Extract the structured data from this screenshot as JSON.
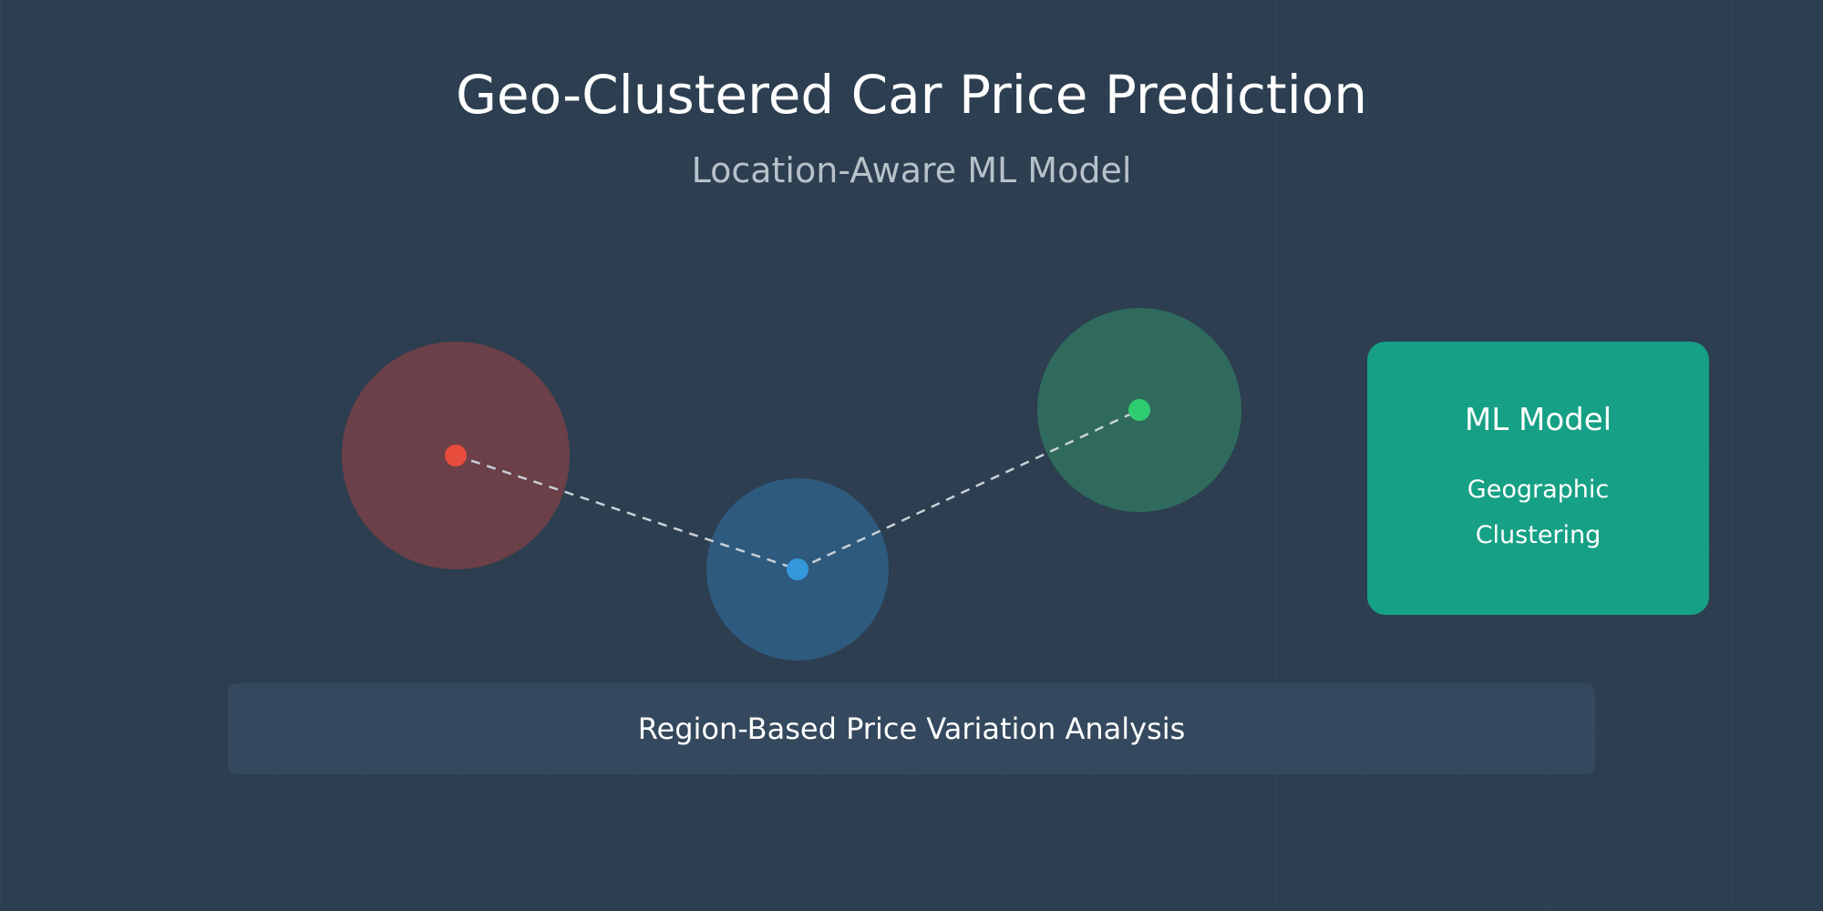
{
  "header": {
    "title": "Geo-Clustered Car Price Prediction",
    "subtitle": "Location-Aware ML Model"
  },
  "clusters": [
    {
      "name": "red-cluster",
      "color": "#e74c3c",
      "halo_color": "#6b4048"
    },
    {
      "name": "blue-cluster",
      "color": "#3498db",
      "halo_color": "#2e5a7e"
    },
    {
      "name": "green-cluster",
      "color": "#2ecc71",
      "halo_color": "#2f6a5c"
    }
  ],
  "connector": {
    "style": "dashed",
    "color": "#c8d0d6"
  },
  "model_box": {
    "title": "ML Model",
    "subtitle_line1": "Geographic",
    "subtitle_line2": "Clustering",
    "color": "#16a085"
  },
  "analysis_bar": {
    "label": "Region-Based Price Variation Analysis",
    "color": "#34495e"
  },
  "colors": {
    "background": "#2c3e50",
    "text": "#ffffff",
    "subtitle_text": "#b7c1c9"
  }
}
